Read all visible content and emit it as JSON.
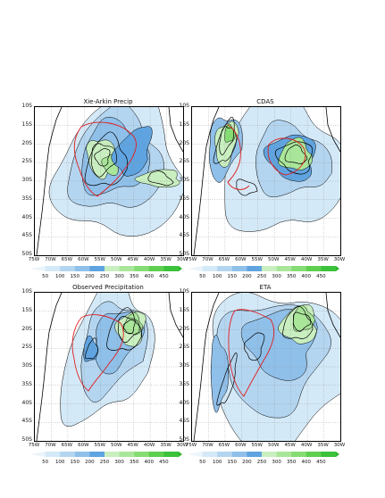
{
  "panels": [
    {
      "id": "xie-arkin",
      "title": "Xie-Arkin Precip"
    },
    {
      "id": "cdas",
      "title": "CDAS"
    },
    {
      "id": "observed",
      "title": "Observed Precipitation"
    },
    {
      "id": "eta",
      "title": "ETA"
    }
  ],
  "lat_labels": [
    "10S",
    "15S",
    "20S",
    "25S",
    "30S",
    "35S",
    "40S",
    "45S",
    "50S"
  ],
  "lon_labels": [
    "75W",
    "70W",
    "65W",
    "60W",
    "55W",
    "50W",
    "45W",
    "40W",
    "35W",
    "30W"
  ],
  "colorbar": {
    "labels": [
      "50",
      "100",
      "150",
      "200",
      "250",
      "300",
      "350",
      "400",
      "450"
    ],
    "colors": [
      "#d4e9f7",
      "#b4d5f0",
      "#8fc0ea",
      "#5fa4e0",
      "#c9efc0",
      "#a9e69a",
      "#86dc74",
      "#5ecf4f",
      "#3cc23a"
    ]
  },
  "colors": {
    "contour": "#000000",
    "region_outline": "#e11d1d"
  }
}
